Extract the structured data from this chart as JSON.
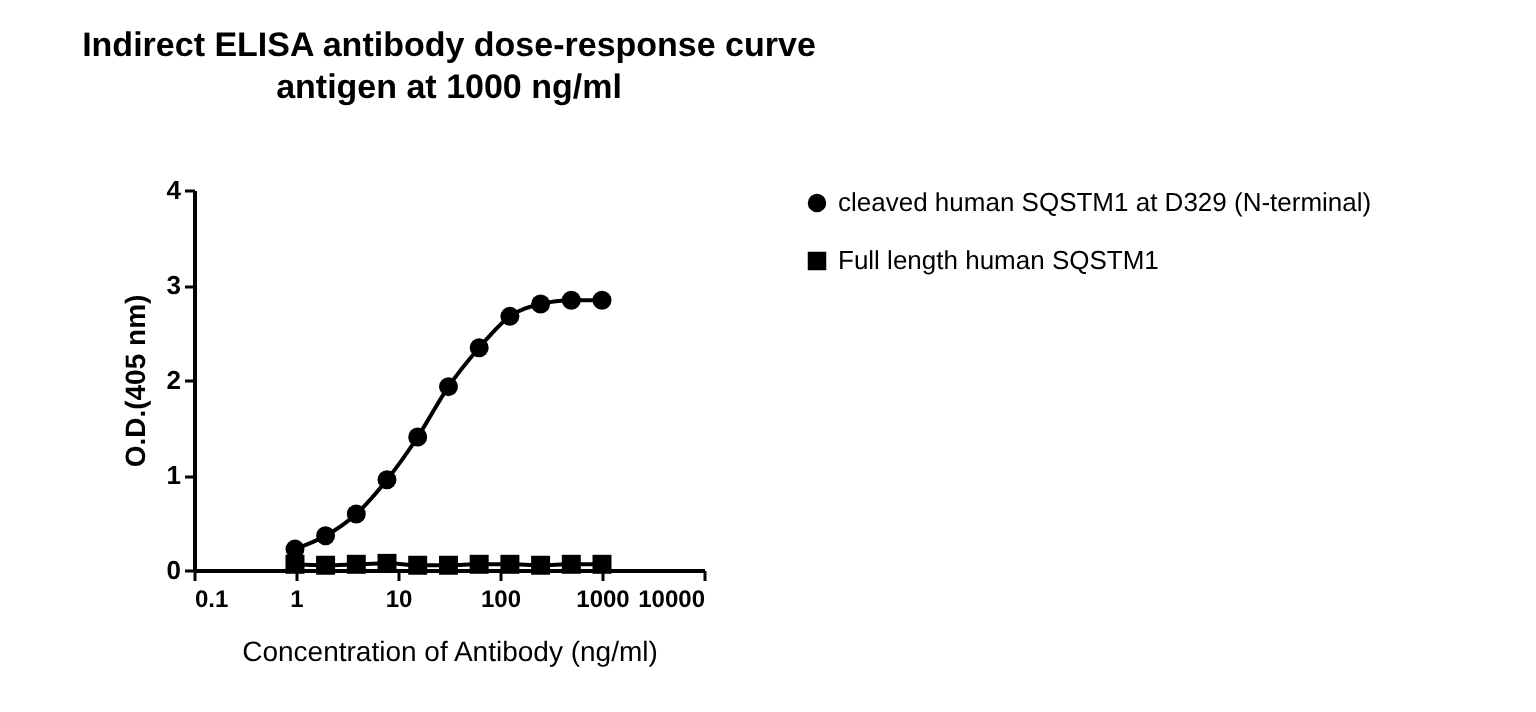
{
  "chart_data": {
    "type": "line",
    "title": "Indirect ELISA antibody dose-response curve",
    "subtitle": "antigen at 1000 ng/ml",
    "xlabel": "Concentration of Antibody (ng/ml)",
    "ylabel": "O.D.(405 nm)",
    "x": [
      0.977,
      1.95,
      3.9,
      7.8,
      15.6,
      31.25,
      62.5,
      125,
      250,
      500,
      1000
    ],
    "series": [
      {
        "name": "cleaved human SQSTM1 at D329 (N-terminal)",
        "color": "#000000",
        "marker": "circle",
        "values": [
          0.22,
          0.36,
          0.59,
          0.95,
          1.4,
          1.93,
          2.34,
          2.67,
          2.8,
          2.84,
          2.84
        ]
      },
      {
        "name": "Full length human SQSTM1",
        "color": "#000000",
        "marker": "square",
        "values": [
          0.06,
          0.05,
          0.06,
          0.07,
          0.05,
          0.05,
          0.06,
          0.06,
          0.05,
          0.06,
          0.06
        ]
      }
    ],
    "log": "x",
    "xlim": [
      0.1,
      10000
    ],
    "xticks": [
      0.1,
      1,
      10,
      100,
      1000,
      10000
    ],
    "ylim": [
      0,
      4
    ],
    "yticks": [
      0,
      1,
      2,
      3,
      4
    ],
    "grid": false,
    "legend": "right",
    "line_style": "solid"
  }
}
